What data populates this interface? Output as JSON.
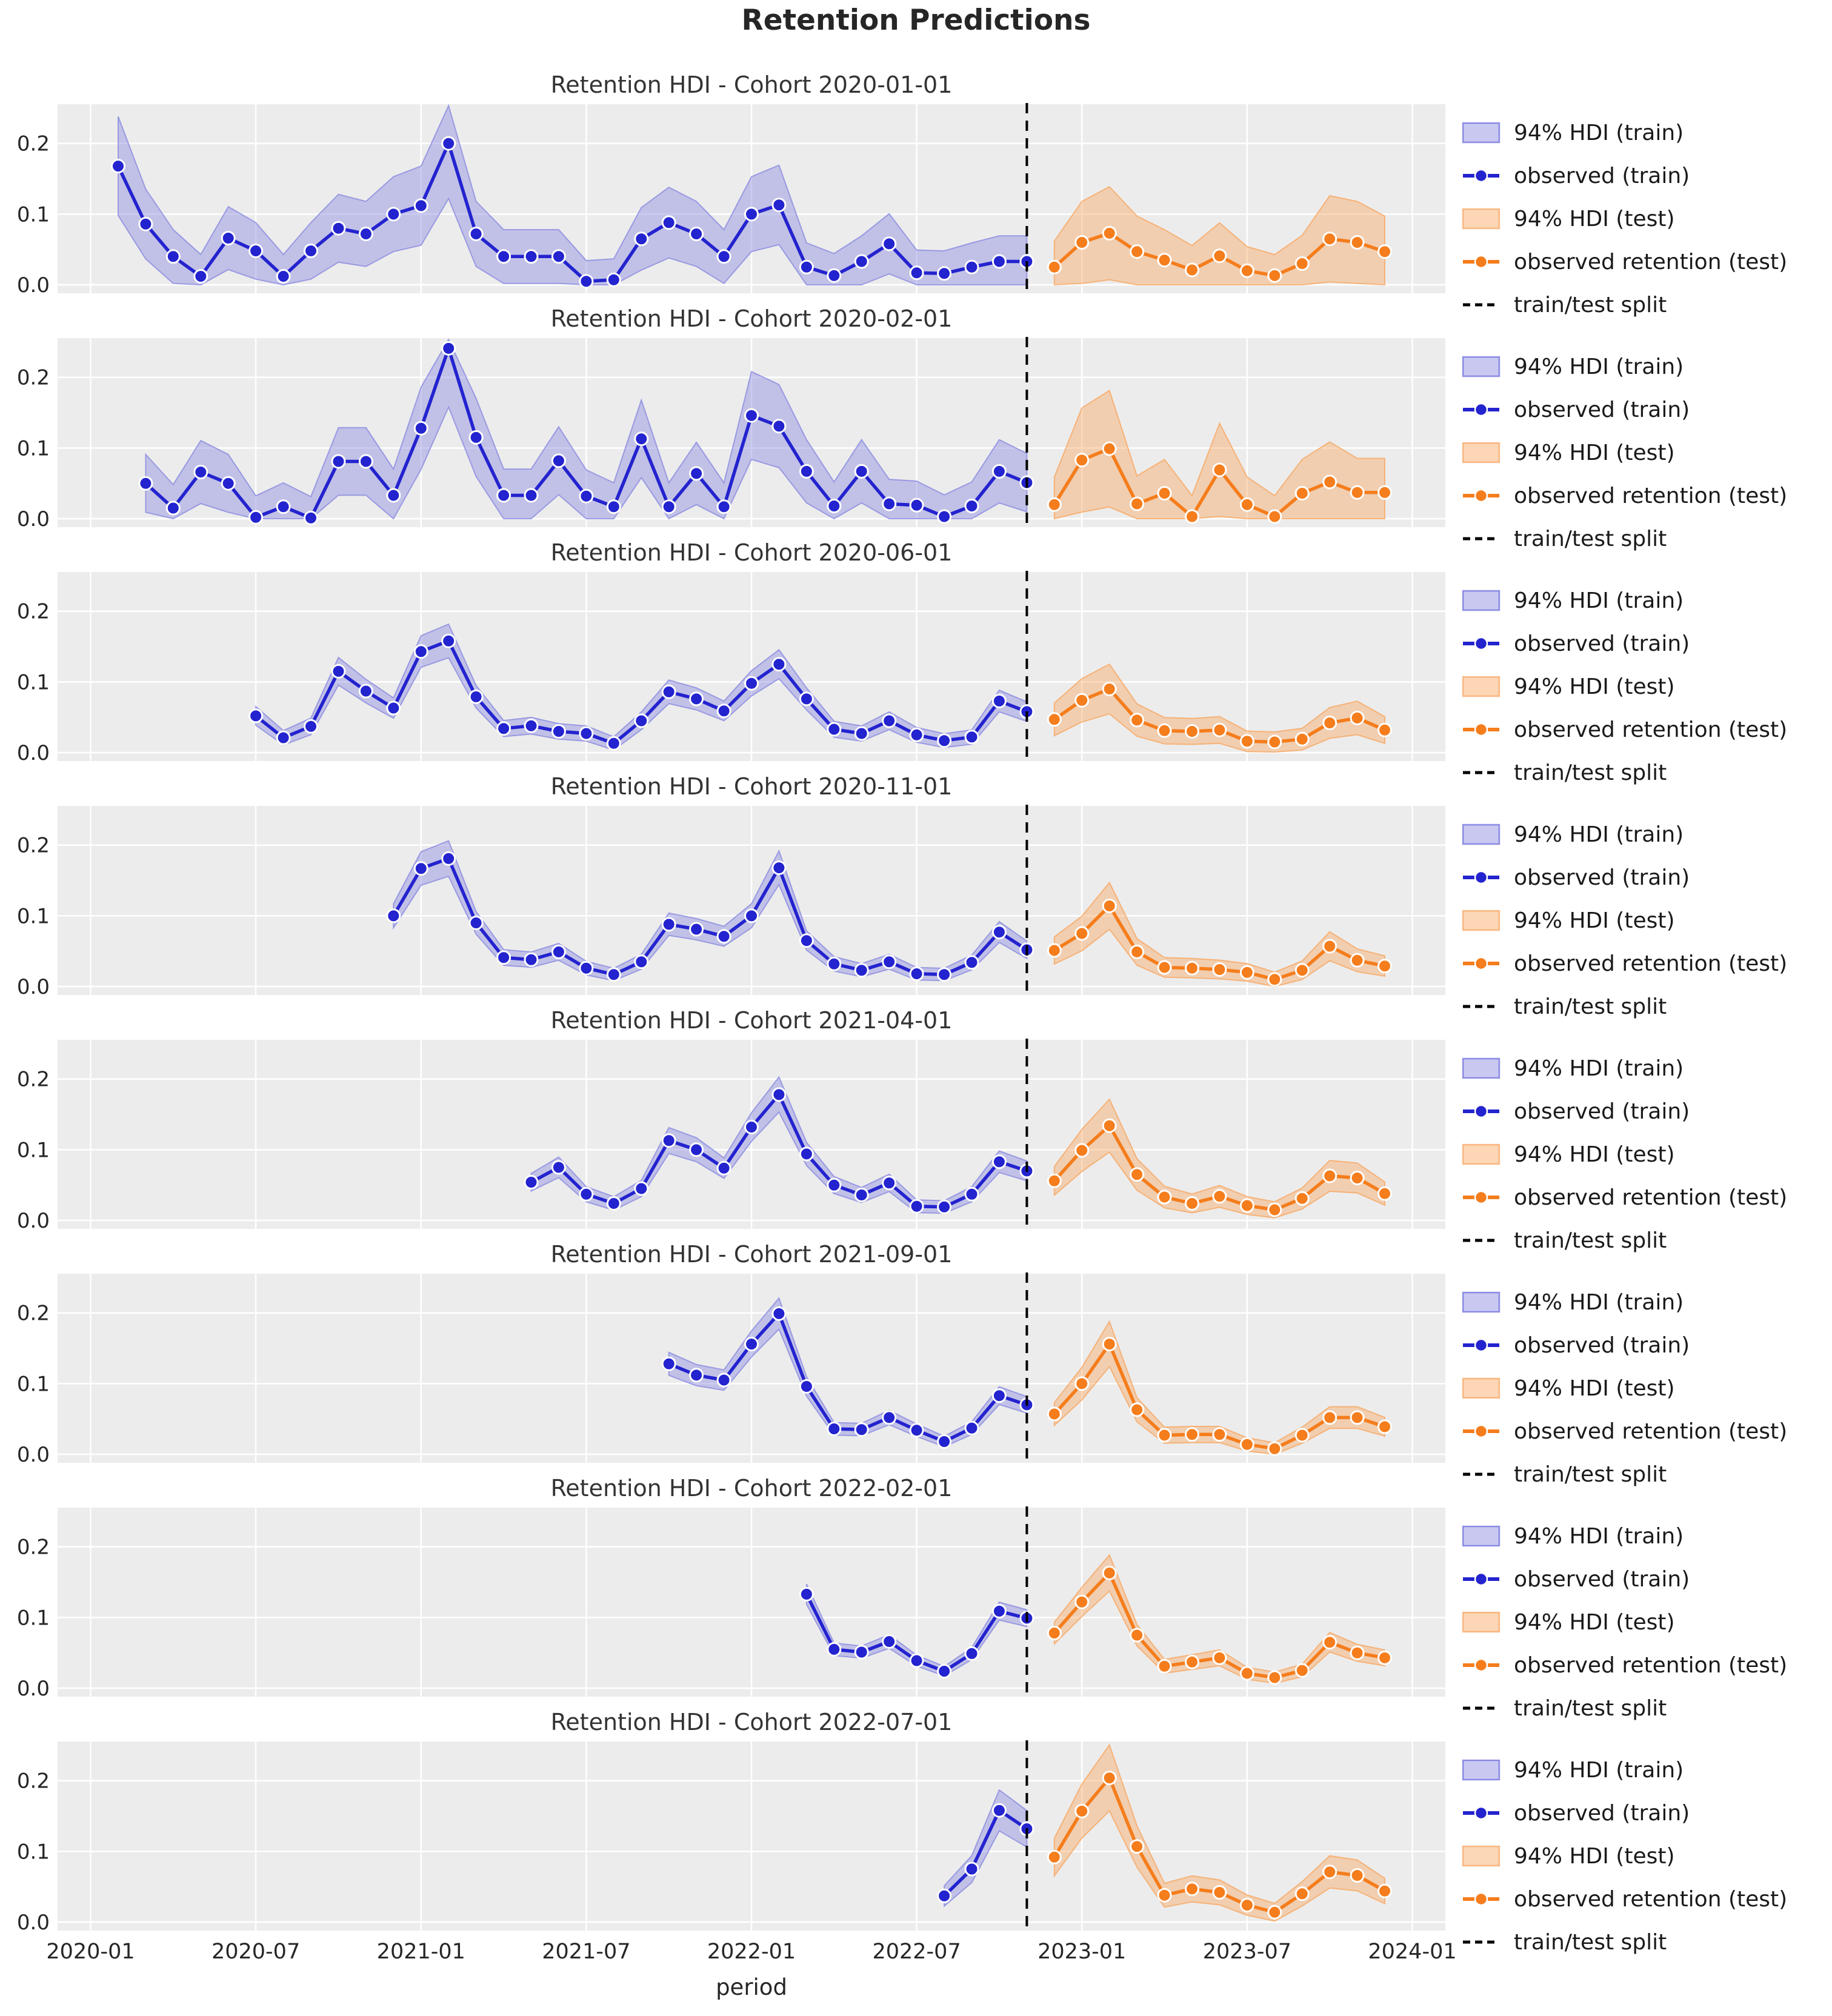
{
  "chart_data": {
    "type": "line",
    "figure_title": "Retention Predictions",
    "xlabel": "period",
    "x_tick_labels": [
      "2020-01",
      "2020-07",
      "2021-01",
      "2021-07",
      "2022-01",
      "2022-07",
      "2023-01",
      "2023-07",
      "2024-01"
    ],
    "x_tick_months": [
      0,
      6,
      12,
      18,
      24,
      30,
      36,
      42,
      48
    ],
    "x_start_month": "2020-01",
    "y_tick_labels": [
      "0.0",
      "0.1",
      "0.2"
    ],
    "y_ticks": [
      0.0,
      0.1,
      0.2
    ],
    "ylim": [
      -0.012,
      0.2555
    ],
    "grid": true,
    "legend_position": "right",
    "legend": [
      {
        "swatch": "band-train",
        "label": "94% HDI (train)"
      },
      {
        "swatch": "line-train",
        "label": "observed (train)"
      },
      {
        "swatch": "band-test",
        "label": "94% HDI (test)"
      },
      {
        "swatch": "line-test",
        "label": "observed retention (test)"
      },
      {
        "swatch": "split",
        "label": "train/test split"
      }
    ],
    "split_month_index": 34,
    "split_date": "2022-11",
    "test_start_index": 35,
    "colors": {
      "train_line": "#2323cf",
      "train_band": "#8585e0",
      "test_line": "#f57d1c",
      "test_band": "#f8a45c",
      "split_line": "#000000",
      "panel_bg": "#ececec",
      "grid": "#ffffff",
      "text": "#262626"
    },
    "panels": [
      {
        "title": "Retention HDI - Cohort 2020-01-01",
        "cohort": "2020-01-01",
        "train_start_index": 1,
        "train_values": [
          0.168,
          0.086,
          0.04,
          0.012,
          0.066,
          0.048,
          0.012,
          0.048,
          0.08,
          0.072,
          0.1,
          0.112,
          0.2,
          0.072,
          0.04,
          0.04,
          0.04,
          0.005,
          0.007,
          0.065,
          0.088,
          0.072,
          0.04,
          0.1,
          0.113,
          0.025,
          0.013,
          0.033,
          0.058,
          0.017,
          0.016,
          0.025,
          0.033,
          0.033
        ],
        "test_values": [
          0.025,
          0.06,
          0.073,
          0.047,
          0.035,
          0.021,
          0.041,
          0.02,
          0.013,
          0.03,
          0.065,
          0.06,
          0.047
        ],
        "hdi_train": {
          "a": 0.028,
          "b": 0.25
        },
        "hdi_test": {
          "a": 0.022,
          "b": 0.6
        }
      },
      {
        "title": "Retention HDI - Cohort 2020-02-01",
        "cohort": "2020-02-01",
        "train_start_index": 2,
        "train_values": [
          0.05,
          0.015,
          0.066,
          0.05,
          0.002,
          0.017,
          0.001,
          0.081,
          0.081,
          0.033,
          0.128,
          0.241,
          0.115,
          0.033,
          0.033,
          0.082,
          0.032,
          0.017,
          0.113,
          0.017,
          0.064,
          0.017,
          0.146,
          0.131,
          0.067,
          0.018,
          0.067,
          0.021,
          0.019,
          0.003,
          0.018,
          0.067,
          0.051
        ],
        "test_values": [
          0.02,
          0.083,
          0.099,
          0.021,
          0.036,
          0.003,
          0.069,
          0.02,
          0.003,
          0.036,
          0.052,
          0.037,
          0.037
        ],
        "hdi_train": {
          "a": 0.03,
          "b": 0.22
        },
        "hdi_test": {
          "a": 0.028,
          "b": 0.55
        }
      },
      {
        "title": "Retention HDI - Cohort 2020-06-01",
        "cohort": "2020-06-01",
        "train_start_index": 6,
        "train_values": [
          0.052,
          0.021,
          0.037,
          0.115,
          0.087,
          0.063,
          0.143,
          0.158,
          0.079,
          0.034,
          0.038,
          0.03,
          0.027,
          0.013,
          0.045,
          0.086,
          0.076,
          0.059,
          0.098,
          0.125,
          0.076,
          0.033,
          0.027,
          0.045,
          0.025,
          0.017,
          0.022,
          0.073,
          0.058
        ],
        "test_values": [
          0.047,
          0.074,
          0.09,
          0.046,
          0.031,
          0.03,
          0.032,
          0.016,
          0.015,
          0.019,
          0.042,
          0.049,
          0.032
        ],
        "hdi_train": {
          "a": 0.008,
          "b": 0.1
        },
        "hdi_test": {
          "a": 0.01,
          "b": 0.28
        }
      },
      {
        "title": "Retention HDI - Cohort 2020-11-01",
        "cohort": "2020-11-01",
        "train_start_index": 11,
        "train_values": [
          0.1,
          0.167,
          0.181,
          0.09,
          0.041,
          0.038,
          0.049,
          0.026,
          0.017,
          0.035,
          0.088,
          0.081,
          0.071,
          0.1,
          0.168,
          0.065,
          0.032,
          0.023,
          0.035,
          0.018,
          0.017,
          0.034,
          0.077,
          0.052
        ],
        "test_values": [
          0.051,
          0.075,
          0.114,
          0.049,
          0.027,
          0.026,
          0.024,
          0.02,
          0.01,
          0.023,
          0.057,
          0.037,
          0.029
        ],
        "hdi_train": {
          "a": 0.007,
          "b": 0.1
        },
        "hdi_test": {
          "a": 0.008,
          "b": 0.22
        }
      },
      {
        "title": "Retention HDI - Cohort 2021-04-01",
        "cohort": "2021-04-01",
        "train_start_index": 16,
        "train_values": [
          0.054,
          0.075,
          0.037,
          0.024,
          0.045,
          0.113,
          0.1,
          0.074,
          0.132,
          0.178,
          0.094,
          0.05,
          0.036,
          0.053,
          0.02,
          0.019,
          0.037,
          0.083,
          0.07
        ],
        "test_values": [
          0.056,
          0.099,
          0.134,
          0.065,
          0.033,
          0.024,
          0.034,
          0.021,
          0.015,
          0.031,
          0.063,
          0.06,
          0.038
        ],
        "hdi_train": {
          "a": 0.007,
          "b": 0.1
        },
        "hdi_test": {
          "a": 0.008,
          "b": 0.22
        }
      },
      {
        "title": "Retention HDI - Cohort 2021-09-01",
        "cohort": "2021-09-01",
        "train_start_index": 21,
        "train_values": [
          0.128,
          0.112,
          0.105,
          0.156,
          0.199,
          0.096,
          0.036,
          0.035,
          0.052,
          0.034,
          0.018,
          0.037,
          0.083,
          0.07
        ],
        "test_values": [
          0.057,
          0.1,
          0.156,
          0.063,
          0.027,
          0.028,
          0.028,
          0.014,
          0.008,
          0.027,
          0.052,
          0.052,
          0.039
        ],
        "hdi_train": {
          "a": 0.006,
          "b": 0.08
        },
        "hdi_test": {
          "a": 0.007,
          "b": 0.16
        }
      },
      {
        "title": "Retention HDI - Cohort 2022-02-01",
        "cohort": "2022-02-01",
        "train_start_index": 26,
        "train_values": [
          0.133,
          0.055,
          0.051,
          0.066,
          0.039,
          0.024,
          0.049,
          0.109,
          0.099
        ],
        "test_values": [
          0.078,
          0.122,
          0.163,
          0.075,
          0.031,
          0.037,
          0.043,
          0.021,
          0.015,
          0.025,
          0.065,
          0.05,
          0.043
        ],
        "hdi_train": {
          "a": 0.005,
          "b": 0.07
        },
        "hdi_test": {
          "a": 0.006,
          "b": 0.12
        }
      },
      {
        "title": "Retention HDI - Cohort 2022-07-01",
        "cohort": "2022-07-01",
        "train_start_index": 31,
        "train_values": [
          0.037,
          0.075,
          0.158,
          0.132
        ],
        "test_values": [
          0.092,
          0.157,
          0.204,
          0.107,
          0.038,
          0.047,
          0.042,
          0.024,
          0.014,
          0.04,
          0.071,
          0.066,
          0.044
        ],
        "hdi_train": {
          "a": 0.01,
          "b": 0.12
        },
        "hdi_test": {
          "a": 0.01,
          "b": 0.18
        }
      }
    ]
  }
}
